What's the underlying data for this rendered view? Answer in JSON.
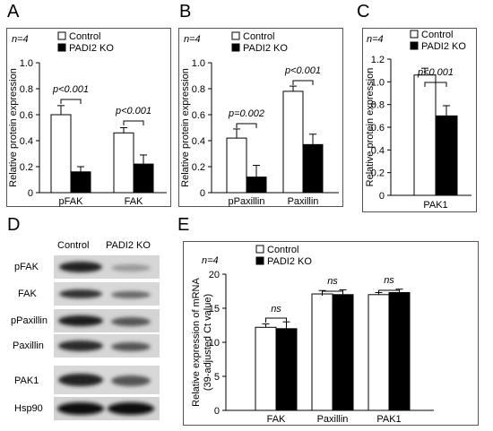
{
  "panels": {
    "A": "A",
    "B": "B",
    "C": "C",
    "D": "D",
    "E": "E"
  },
  "chart_data": [
    {
      "id": "A",
      "type": "bar",
      "n_label": "n=4",
      "legend": [
        "Control",
        "PADI2 KO"
      ],
      "ylabel": "Relative protein expression",
      "ylim": [
        0,
        1.0
      ],
      "yticks": [
        "0",
        "0.2",
        "0.4",
        "0.6",
        "0.8",
        "1.0"
      ],
      "categories": [
        "pFAK",
        "FAK"
      ],
      "series": [
        {
          "name": "Control",
          "values": [
            0.6,
            0.46
          ],
          "errors": [
            0.07,
            0.04
          ],
          "color": "#ffffff"
        },
        {
          "name": "PADI2 KO",
          "values": [
            0.16,
            0.22
          ],
          "errors": [
            0.04,
            0.07
          ],
          "color": "#000000"
        }
      ],
      "annotations": [
        "p<0.001",
        "p<0.001"
      ]
    },
    {
      "id": "B",
      "type": "bar",
      "n_label": "n=4",
      "legend": [
        "Control",
        "PADI2 KO"
      ],
      "ylabel": "Relative protein expression",
      "ylim": [
        0,
        1.0
      ],
      "yticks": [
        "0",
        "0.2",
        "0.4",
        "0.6",
        "0.8",
        "1.0"
      ],
      "categories": [
        "pPaxillin",
        "Paxillin"
      ],
      "series": [
        {
          "name": "Control",
          "values": [
            0.42,
            0.78
          ],
          "errors": [
            0.07,
            0.04
          ],
          "color": "#ffffff"
        },
        {
          "name": "PADI2 KO",
          "values": [
            0.12,
            0.37
          ],
          "errors": [
            0.09,
            0.08
          ],
          "color": "#000000"
        }
      ],
      "annotations": [
        "p=0.002",
        "p<0.001"
      ]
    },
    {
      "id": "C",
      "type": "bar",
      "n_label": "n=4",
      "legend": [
        "Control",
        "PADI2 KO"
      ],
      "ylabel": "Relative protein expression",
      "ylim": [
        0,
        1.2
      ],
      "yticks": [
        "0",
        "0.2",
        "0.4",
        "0.6",
        "0.8",
        "1.0",
        "1.2"
      ],
      "categories": [
        "PAK1"
      ],
      "series": [
        {
          "name": "Control",
          "values": [
            1.06
          ],
          "errors": [
            0.06
          ],
          "color": "#ffffff"
        },
        {
          "name": "PADI2 KO",
          "values": [
            0.7
          ],
          "errors": [
            0.09
          ],
          "color": "#000000"
        }
      ],
      "annotations": [
        "p<0.001"
      ]
    },
    {
      "id": "E",
      "type": "bar",
      "n_label": "n=4",
      "legend": [
        "Control",
        "PADI2 KO"
      ],
      "ylabel": "Relative expression of mRNA",
      "ylabel2": "(39-adjusted Ct value)",
      "ylim": [
        0,
        20
      ],
      "yticks": [
        "0",
        "5",
        "10",
        "15",
        "20"
      ],
      "categories": [
        "FAK",
        "Paxillin",
        "PAK1"
      ],
      "series": [
        {
          "name": "Control",
          "values": [
            12.2,
            17.1,
            17.0
          ],
          "errors": [
            0.5,
            0.5,
            0.3
          ],
          "color": "#ffffff"
        },
        {
          "name": "PADI2 KO",
          "values": [
            12.0,
            17.0,
            17.3
          ],
          "errors": [
            1.0,
            0.7,
            0.5
          ],
          "color": "#000000"
        }
      ],
      "annotations": [
        "ns",
        "ns",
        "ns"
      ]
    }
  ],
  "blot": {
    "headers": [
      "Control",
      "PADI2 KO"
    ],
    "rows": [
      "pFAK",
      "FAK",
      "pPaxillin",
      "Paxillin",
      "PAK1",
      "Hsp90"
    ]
  }
}
